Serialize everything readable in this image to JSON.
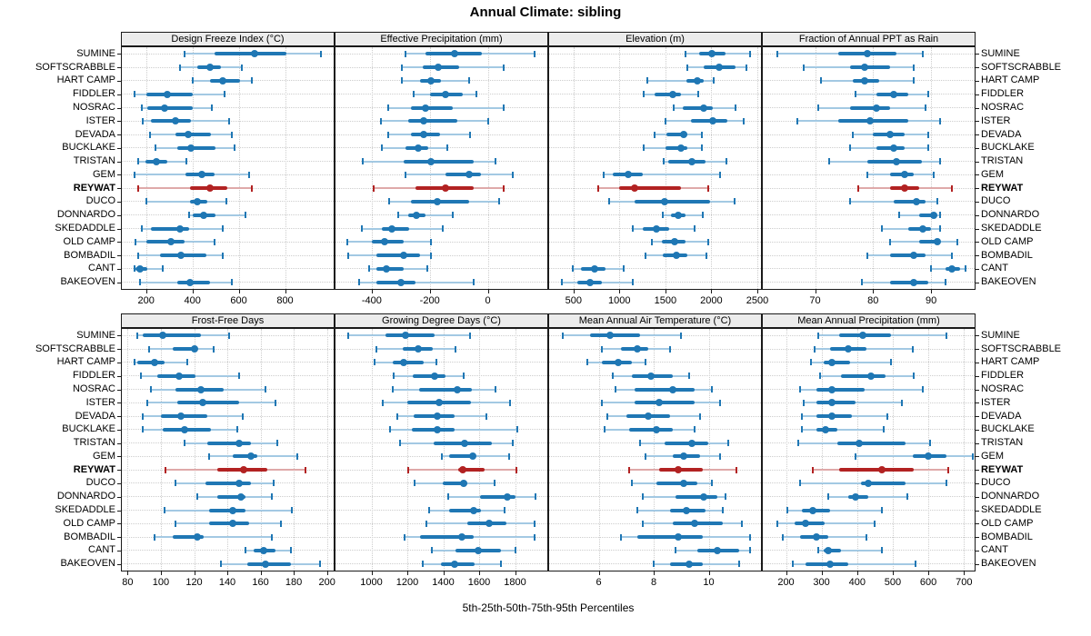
{
  "title": "Annual Climate: sibling",
  "footer": "5th-25th-50th-75th-95th Percentiles",
  "highlight_site": "REYWAT",
  "colors": {
    "series": "#1F77B4",
    "series_light": "#A3C9E3",
    "highlight": "#B22222",
    "highlight_light": "#DFA9A9",
    "grid": "#CDCDCD",
    "strip_bg": "#ECECEC",
    "border": "#1A1A1A"
  },
  "sites": [
    "SUMINE",
    "SOFTSCRABBLE",
    "HART CAMP",
    "FIDDLER",
    "NOSRAC",
    "ISTER",
    "DEVADA",
    "BUCKLAKE",
    "TRISTAN",
    "GEM",
    "REYWAT",
    "DUCO",
    "DONNARDO",
    "SKEDADDLE",
    "OLD CAMP",
    "BOMBADIL",
    "CANT",
    "BAKEOVEN"
  ],
  "chart_data": [
    {
      "type": "dot-whisker",
      "title": "Design Freeze Index (°C)",
      "xlim": [
        95,
        1010
      ],
      "ticks": [
        200,
        400,
        600,
        800
      ],
      "percentiles": [
        "5th",
        "25th",
        "50th",
        "75th",
        "95th"
      ],
      "values": [
        [
          365,
          495,
          670,
          805,
          955
        ],
        [
          345,
          420,
          475,
          525,
          615
        ],
        [
          400,
          475,
          530,
          605,
          655
        ],
        [
          150,
          200,
          290,
          400,
          540
        ],
        [
          180,
          205,
          280,
          400,
          485
        ],
        [
          185,
          220,
          325,
          395,
          560
        ],
        [
          215,
          325,
          380,
          480,
          570
        ],
        [
          240,
          335,
          395,
          500,
          580
        ],
        [
          165,
          195,
          245,
          290,
          375
        ],
        [
          150,
          370,
          440,
          495,
          645
        ],
        [
          165,
          390,
          475,
          550,
          655
        ],
        [
          200,
          390,
          420,
          465,
          545
        ],
        [
          385,
          400,
          450,
          500,
          630
        ],
        [
          180,
          220,
          345,
          385,
          530
        ],
        [
          155,
          200,
          305,
          365,
          495
        ],
        [
          165,
          260,
          350,
          460,
          530
        ],
        [
          150,
          155,
          175,
          205,
          270
        ],
        [
          175,
          335,
          390,
          475,
          570
        ]
      ]
    },
    {
      "type": "dot-whisker",
      "title": "Effective Precipitation (mm)",
      "xlim": [
        -525,
        205
      ],
      "ticks": [
        -400,
        -200,
        0
      ],
      "percentiles": [
        "5th",
        "25th",
        "50th",
        "75th",
        "95th"
      ],
      "values": [
        [
          -285,
          -215,
          -115,
          -20,
          160
        ],
        [
          -295,
          -225,
          -170,
          -100,
          55
        ],
        [
          -295,
          -235,
          -195,
          -160,
          -65
        ],
        [
          -255,
          -200,
          -145,
          -85,
          -40
        ],
        [
          -345,
          -265,
          -215,
          -120,
          55
        ],
        [
          -370,
          -275,
          -220,
          -105,
          0
        ],
        [
          -345,
          -265,
          -220,
          -165,
          -60
        ],
        [
          -365,
          -285,
          -240,
          -205,
          -140
        ],
        [
          -430,
          -290,
          -195,
          -50,
          25
        ],
        [
          -285,
          -145,
          -65,
          -25,
          85
        ],
        [
          -395,
          -250,
          -145,
          -50,
          55
        ],
        [
          -340,
          -265,
          -175,
          -65,
          40
        ],
        [
          -310,
          -275,
          -245,
          -215,
          -120
        ],
        [
          -435,
          -365,
          -330,
          -270,
          -155
        ],
        [
          -485,
          -400,
          -355,
          -290,
          -195
        ],
        [
          -480,
          -385,
          -290,
          -235,
          -195
        ],
        [
          -410,
          -385,
          -350,
          -290,
          -210
        ],
        [
          -445,
          -385,
          -300,
          -250,
          -50
        ]
      ]
    },
    {
      "type": "dot-whisker",
      "title": "Elevation (m)",
      "xlim": [
        235,
        2540
      ],
      "ticks": [
        500,
        1000,
        1500,
        2000,
        2500
      ],
      "percentiles": [
        "5th",
        "25th",
        "50th",
        "75th",
        "95th"
      ],
      "values": [
        [
          1715,
          1870,
          2010,
          2150,
          2425
        ],
        [
          1735,
          1920,
          2085,
          2260,
          2380
        ],
        [
          1305,
          1725,
          1850,
          1920,
          2030
        ],
        [
          1265,
          1380,
          1575,
          1675,
          1855
        ],
        [
          1590,
          1690,
          1920,
          2020,
          2265
        ],
        [
          1505,
          1775,
          2015,
          2170,
          2350
        ],
        [
          1385,
          1510,
          1700,
          1740,
          1900
        ],
        [
          1265,
          1505,
          1670,
          1740,
          1900
        ],
        [
          1485,
          1535,
          1790,
          1940,
          2160
        ],
        [
          825,
          925,
          1100,
          1255,
          2095
        ],
        [
          770,
          1000,
          1165,
          1670,
          1970
        ],
        [
          885,
          1165,
          1495,
          1985,
          2250
        ],
        [
          1475,
          1560,
          1635,
          1715,
          1910
        ],
        [
          1140,
          1255,
          1405,
          1545,
          1820
        ],
        [
          1350,
          1460,
          1600,
          1715,
          1965
        ],
        [
          1285,
          1470,
          1615,
          1735,
          1945
        ],
        [
          490,
          580,
          730,
          850,
          1045
        ],
        [
          375,
          540,
          680,
          805,
          1140
        ]
      ]
    },
    {
      "type": "dot-whisker",
      "title": "Fraction of Annual PPT as Rain",
      "xlim": [
        61,
        97.5
      ],
      "ticks": [
        70,
        80,
        90
      ],
      "percentiles": [
        "5th",
        "25th",
        "50th",
        "75th",
        "95th"
      ],
      "values": [
        [
          63.5,
          74,
          79,
          84,
          88.5
        ],
        [
          68,
          76,
          78.5,
          83,
          87
        ],
        [
          71,
          76.5,
          78.5,
          81,
          87
        ],
        [
          77,
          80.5,
          83.5,
          86,
          89.5
        ],
        [
          70.5,
          76,
          80.5,
          83,
          89
        ],
        [
          67,
          74,
          79.5,
          86,
          91.5
        ],
        [
          76.5,
          80,
          83,
          85.5,
          89.5
        ],
        [
          76,
          80.5,
          83.5,
          85.5,
          89.5
        ],
        [
          72.5,
          79,
          84,
          88.5,
          91.5
        ],
        [
          79,
          83,
          85.5,
          87,
          90.5
        ],
        [
          77.5,
          83,
          85.5,
          88,
          93.5
        ],
        [
          76,
          83.5,
          87.5,
          89,
          91
        ],
        [
          84.5,
          88,
          90.5,
          91,
          91.5
        ],
        [
          81.5,
          86,
          88.5,
          90,
          91.5
        ],
        [
          83,
          88,
          91,
          91.5,
          94.5
        ],
        [
          79,
          83,
          87,
          89,
          93.5
        ],
        [
          90,
          92.5,
          93.5,
          95,
          96
        ],
        [
          78,
          83,
          87,
          89.5,
          92.5
        ]
      ]
    },
    {
      "type": "dot-whisker",
      "title": "Frost-Free Days",
      "xlim": [
        76.5,
        204
      ],
      "ticks": [
        80,
        100,
        120,
        140,
        160,
        180,
        200
      ],
      "percentiles": [
        "5th",
        "25th",
        "50th",
        "75th",
        "95th"
      ],
      "values": [
        [
          86,
          89,
          101,
          124,
          141
        ],
        [
          93,
          107,
          120,
          122,
          132
        ],
        [
          84,
          86,
          96,
          102,
          116
        ],
        [
          88,
          98,
          111,
          121,
          147
        ],
        [
          94,
          109,
          124,
          138,
          163
        ],
        [
          92,
          110,
          125,
          147,
          169
        ],
        [
          89,
          100,
          112,
          128,
          149
        ],
        [
          89,
          101,
          114,
          130,
          146
        ],
        [
          114,
          128,
          147,
          154,
          170
        ],
        [
          129,
          143,
          154,
          158,
          182
        ],
        [
          103,
          134,
          150,
          164,
          187
        ],
        [
          109,
          127,
          147,
          154,
          168
        ],
        [
          122,
          134,
          148,
          151,
          167
        ],
        [
          102,
          129,
          143,
          151,
          179
        ],
        [
          109,
          129,
          143,
          153,
          172
        ],
        [
          96,
          107,
          122,
          126,
          167
        ],
        [
          151,
          156,
          162,
          169,
          178
        ],
        [
          136,
          152,
          163,
          178,
          196
        ]
      ]
    },
    {
      "type": "dot-whisker",
      "title": "Growing Degree Days (°C)",
      "xlim": [
        800,
        1980
      ],
      "ticks": [
        1000,
        1200,
        1400,
        1600,
        1800
      ],
      "percentiles": [
        "5th",
        "25th",
        "50th",
        "75th",
        "95th"
      ],
      "values": [
        [
          870,
          1080,
          1190,
          1350,
          1550
        ],
        [
          1030,
          1175,
          1260,
          1340,
          1470
        ],
        [
          1020,
          1120,
          1180,
          1290,
          1360
        ],
        [
          1125,
          1230,
          1350,
          1415,
          1515
        ],
        [
          1120,
          1265,
          1480,
          1560,
          1690
        ],
        [
          1065,
          1200,
          1375,
          1555,
          1770
        ],
        [
          1145,
          1235,
          1365,
          1465,
          1640
        ],
        [
          1105,
          1225,
          1365,
          1465,
          1815
        ],
        [
          1160,
          1345,
          1520,
          1670,
          1785
        ],
        [
          1390,
          1435,
          1565,
          1580,
          1765
        ],
        [
          1205,
          1485,
          1510,
          1630,
          1810
        ],
        [
          1240,
          1395,
          1515,
          1535,
          1685
        ],
        [
          1430,
          1605,
          1755,
          1800,
          1915
        ],
        [
          1320,
          1435,
          1570,
          1610,
          1740
        ],
        [
          1305,
          1535,
          1655,
          1755,
          1910
        ],
        [
          1185,
          1270,
          1505,
          1570,
          1910
        ],
        [
          1335,
          1470,
          1595,
          1720,
          1800
        ],
        [
          1285,
          1385,
          1465,
          1575,
          1720
        ]
      ]
    },
    {
      "type": "dot-whisker",
      "title": "Mean Annual Air Temperature (°C)",
      "xlim": [
        4.2,
        11.9
      ],
      "ticks": [
        6,
        8,
        10
      ],
      "percentiles": [
        "5th",
        "25th",
        "50th",
        "75th",
        "95th"
      ],
      "values": [
        [
          4.7,
          5.7,
          6.4,
          7.5,
          9.0
        ],
        [
          6.1,
          6.8,
          7.4,
          7.8,
          8.6
        ],
        [
          5.6,
          6.1,
          6.7,
          7.2,
          7.7
        ],
        [
          6.5,
          7.2,
          7.9,
          8.7,
          9.3
        ],
        [
          6.6,
          7.3,
          8.7,
          9.5,
          10.1
        ],
        [
          6.1,
          7.3,
          8.2,
          9.5,
          10.4
        ],
        [
          6.3,
          7.0,
          7.8,
          8.6,
          9.7
        ],
        [
          6.2,
          7.1,
          8.1,
          8.7,
          9.5
        ],
        [
          7.5,
          8.4,
          9.4,
          10.0,
          10.7
        ],
        [
          7.7,
          8.7,
          9.1,
          9.7,
          10.4
        ],
        [
          7.1,
          8.2,
          8.9,
          9.8,
          11.0
        ],
        [
          7.2,
          8.1,
          9.1,
          9.6,
          10.1
        ],
        [
          7.6,
          8.8,
          9.8,
          10.3,
          10.6
        ],
        [
          7.4,
          8.6,
          9.2,
          9.9,
          10.5
        ],
        [
          7.6,
          8.7,
          9.5,
          10.5,
          11.2
        ],
        [
          6.8,
          7.4,
          8.9,
          9.8,
          11.5
        ],
        [
          8.8,
          9.6,
          10.3,
          11.1,
          11.5
        ],
        [
          8.0,
          8.6,
          9.3,
          9.8,
          11.1
        ]
      ]
    },
    {
      "type": "dot-whisker",
      "title": "Mean Annual Precipitation (mm)",
      "xlim": [
        135,
        730
      ],
      "ticks": [
        200,
        300,
        400,
        500,
        600,
        700
      ],
      "percentiles": [
        "5th",
        "25th",
        "50th",
        "75th",
        "95th"
      ],
      "values": [
        [
          290,
          350,
          415,
          495,
          650
        ],
        [
          280,
          325,
          375,
          425,
          555
        ],
        [
          270,
          305,
          330,
          380,
          495
        ],
        [
          295,
          355,
          440,
          480,
          560
        ],
        [
          240,
          285,
          330,
          420,
          585
        ],
        [
          250,
          285,
          330,
          395,
          525
        ],
        [
          245,
          285,
          330,
          385,
          485
        ],
        [
          245,
          285,
          310,
          345,
          475
        ],
        [
          235,
          345,
          405,
          535,
          605
        ],
        [
          395,
          555,
          600,
          650,
          725
        ],
        [
          275,
          350,
          470,
          560,
          655
        ],
        [
          240,
          410,
          430,
          535,
          650
        ],
        [
          320,
          375,
          395,
          430,
          540
        ],
        [
          205,
          245,
          275,
          325,
          470
        ],
        [
          175,
          225,
          255,
          310,
          450
        ],
        [
          190,
          240,
          285,
          320,
          425
        ],
        [
          290,
          305,
          320,
          355,
          470
        ],
        [
          220,
          255,
          325,
          375,
          565
        ]
      ]
    }
  ]
}
